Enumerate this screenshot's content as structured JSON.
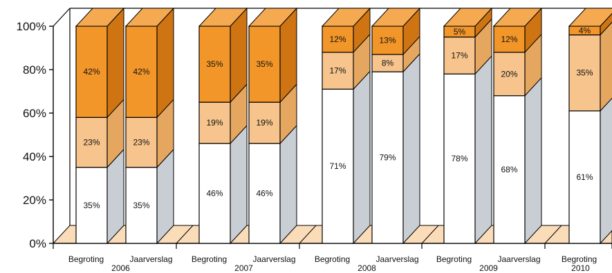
{
  "chart_data": {
    "type": "bar",
    "stacked": true,
    "ylim": [
      0,
      100
    ],
    "yticks": [
      "0%",
      "20%",
      "40%",
      "60%",
      "80%",
      "100%"
    ],
    "groups": [
      {
        "year": "2006",
        "bars": [
          {
            "label": "Begroting",
            "values": [
              35,
              23,
              42
            ]
          },
          {
            "label": "Jaarverslag",
            "values": [
              35,
              23,
              42
            ]
          }
        ]
      },
      {
        "year": "2007",
        "bars": [
          {
            "label": "Begroting",
            "values": [
              46,
              19,
              35
            ]
          },
          {
            "label": "Jaarverslag",
            "values": [
              46,
              19,
              35
            ]
          }
        ]
      },
      {
        "year": "2008",
        "bars": [
          {
            "label": "Begroting",
            "values": [
              71,
              17,
              12
            ]
          },
          {
            "label": "Jaarverslag",
            "values": [
              79,
              8,
              13
            ]
          }
        ]
      },
      {
        "year": "2009",
        "bars": [
          {
            "label": "Begroting",
            "values": [
              78,
              17,
              5
            ]
          },
          {
            "label": "Jaarverslag",
            "values": [
              68,
              20,
              12
            ]
          }
        ]
      },
      {
        "year": "2010",
        "bars": [
          {
            "label": "Begroting",
            "values": [
              61,
              35,
              4
            ]
          }
        ]
      }
    ],
    "colors": {
      "segment_front": [
        "#ffffff",
        "#f6c48c",
        "#f3962a"
      ],
      "segment_side": [
        "#c9cdd4",
        "#e5a760",
        "#cf7412"
      ],
      "segment_top": [
        "#ffffff",
        "#f9d8b0",
        "#f5aa52"
      ],
      "floor": "#fbdcb8",
      "wall": "#ffffff",
      "line": "#000000"
    }
  }
}
